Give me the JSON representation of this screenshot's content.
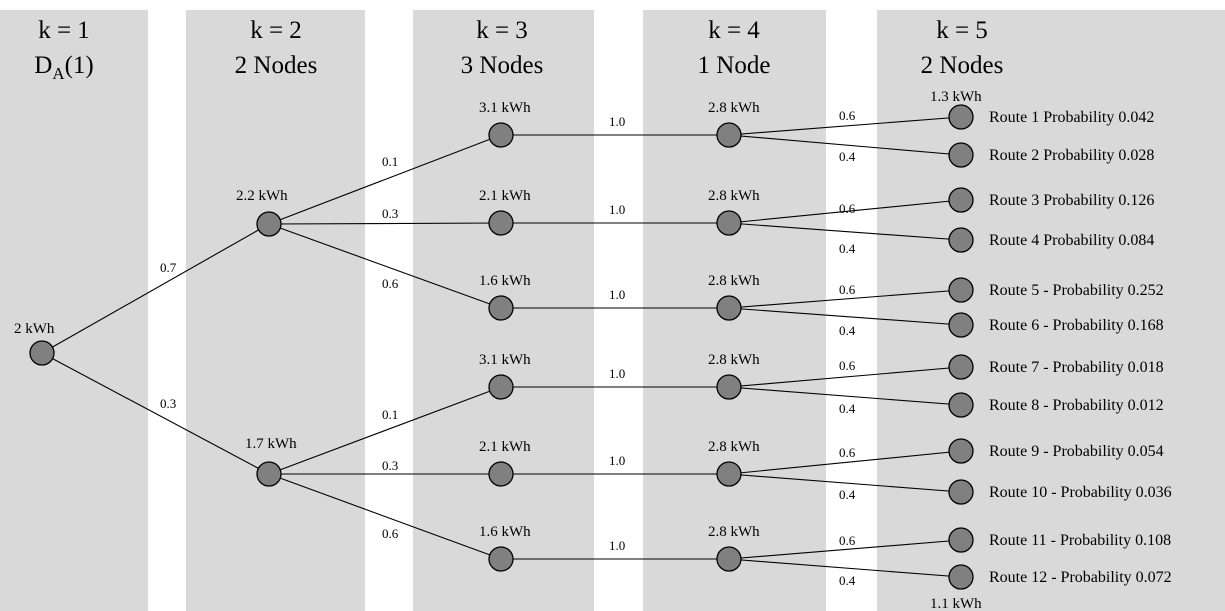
{
  "stages": [
    {
      "title": "k = 1",
      "subtitle_main": "D",
      "subtitle_sub": "A",
      "subtitle_tail": "(1)"
    },
    {
      "title": "k = 2",
      "subtitle": "2 Nodes"
    },
    {
      "title": "k = 3",
      "subtitle": "3 Nodes"
    },
    {
      "title": "k = 4",
      "subtitle": "1 Node"
    },
    {
      "title": "k = 5",
      "subtitle": "2 Nodes"
    }
  ],
  "root": {
    "label": "2 kWh"
  },
  "level2": [
    {
      "label": "2.2 kWh",
      "prob": "0.7"
    },
    {
      "label": "1.7 kWh",
      "prob": "0.3"
    }
  ],
  "level3": [
    {
      "label": "3.1 kWh",
      "prob": "0.1",
      "next_prob": "1.0"
    },
    {
      "label": "2.1 kWh",
      "prob": "0.3",
      "next_prob": "1.0"
    },
    {
      "label": "1.6 kWh",
      "prob": "0.6",
      "next_prob": "1.0"
    },
    {
      "label": "3.1 kWh",
      "prob": "0.1",
      "next_prob": "1.0"
    },
    {
      "label": "2.1 kWh",
      "prob": "0.3",
      "next_prob": "1.0"
    },
    {
      "label": "1.6 kWh",
      "prob": "0.6",
      "next_prob": "1.0"
    }
  ],
  "level4": [
    {
      "label": "2.8 kWh",
      "prob_up": "0.6",
      "prob_down": "0.4"
    },
    {
      "label": "2.8 kWh",
      "prob_up": "0.6",
      "prob_down": "0.4"
    },
    {
      "label": "2.8 kWh",
      "prob_up": "0.6",
      "prob_down": "0.4"
    },
    {
      "label": "2.8 kWh",
      "prob_up": "0.6",
      "prob_down": "0.4"
    },
    {
      "label": "2.8 kWh",
      "prob_up": "0.6",
      "prob_down": "0.4"
    },
    {
      "label": "2.8 kWh",
      "prob_up": "0.6",
      "prob_down": "0.4"
    }
  ],
  "level5_labels": {
    "top": "1.3 kWh",
    "bottom": "1.1 kWh"
  },
  "routes": [
    "Route 1 Probability 0.042",
    "Route 2 Probability 0.028",
    "Route 3 Probability 0.126",
    "Route 4 Probability 0.084",
    "Route 5 - Probability 0.252",
    "Route 6 - Probability 0.168",
    "Route 7 - Probability 0.018",
    "Route 8 - Probability 0.012",
    "Route 9 - Probability 0.054",
    "Route 10 - Probability 0.036",
    "Route 11 - Probability 0.108",
    "Route 12 - Probability 0.072"
  ],
  "colors": {
    "column_bg": "#d9d9d9",
    "node_fill": "#808080"
  }
}
